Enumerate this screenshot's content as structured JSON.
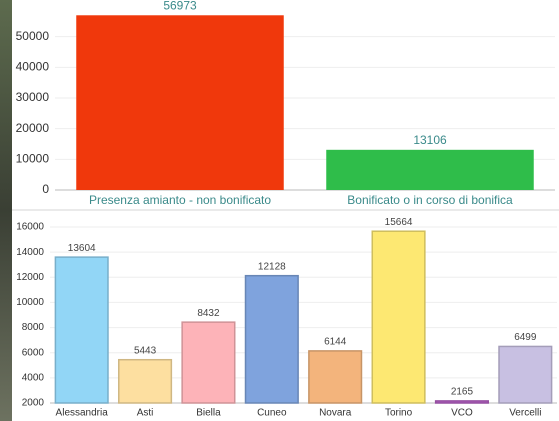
{
  "chart_data": [
    {
      "type": "bar",
      "categories": [
        "Presenza amianto - non bonificato",
        "Bonificato o in corso di bonifica"
      ],
      "values": [
        56973,
        13106
      ],
      "colors": [
        "#f0380c",
        "#2fbd4a"
      ],
      "ylim": [
        0,
        60000
      ],
      "yticks": [
        0,
        10000,
        20000,
        30000,
        40000,
        50000
      ],
      "grid": true
    },
    {
      "type": "bar",
      "categories": [
        "Alessandria",
        "Asti",
        "Biella",
        "Cuneo",
        "Novara",
        "Torino",
        "VCO",
        "Vercelli"
      ],
      "values": [
        13604,
        5443,
        8432,
        12128,
        6144,
        15664,
        2165,
        6499
      ],
      "colors": [
        "#92d6f6",
        "#fddfa0",
        "#fdb3b8",
        "#7fa3dd",
        "#f3b47c",
        "#fde872",
        "#b35fc2",
        "#c8c0e2"
      ],
      "ylim": [
        2000,
        16000
      ],
      "yticks": [
        2000,
        4000,
        6000,
        8000,
        10000,
        12000,
        14000,
        16000
      ],
      "grid": true
    }
  ]
}
